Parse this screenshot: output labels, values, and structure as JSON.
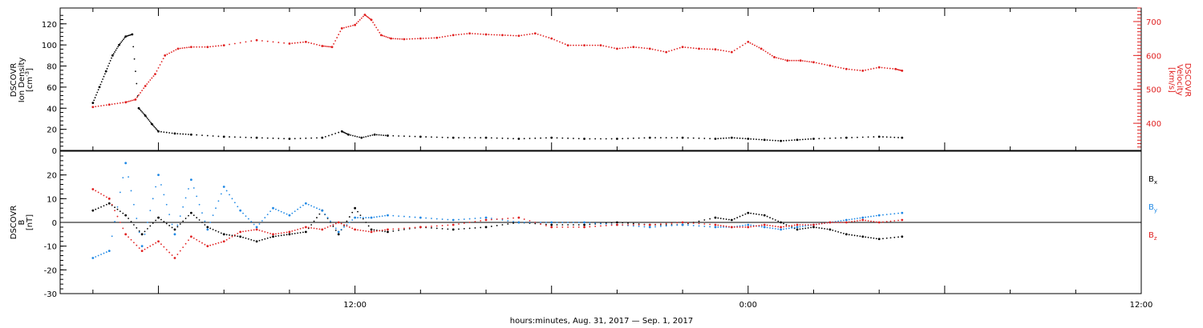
{
  "chart_data": [
    {
      "type": "scatter",
      "title": "",
      "xlabel": "",
      "ylabel_left": [
        "DSCOVR",
        "Ion Density",
        "[cm",
        "-3",
        "]"
      ],
      "ylabel_right": [
        "DSCOVR",
        "Velocity",
        "[km/s]"
      ],
      "ylim_left": [
        0,
        135
      ],
      "ylim_right": [
        320,
        740
      ],
      "left_ticks": [
        "0",
        "20",
        "40",
        "60",
        "80",
        "100",
        "120"
      ],
      "right_ticks": [
        "400",
        "500",
        "600",
        "700"
      ],
      "colors": {
        "density": "#000000",
        "velocity": "#e02020"
      },
      "series": [
        {
          "name": "",
          "axis": "left",
          "x": [
            4.0,
            4.2,
            4.4,
            4.6,
            4.8,
            5.0,
            5.2,
            5.4,
            5.6,
            5.8,
            6.0,
            6.5,
            7,
            8,
            9,
            10,
            11,
            11.6,
            11.8,
            12.2,
            12.6,
            13,
            14,
            15,
            16,
            17,
            18,
            19,
            20,
            21,
            22,
            23,
            23.5,
            24,
            24.5,
            25,
            25.5,
            26,
            27,
            28,
            28.7
          ],
          "y": [
            45,
            60,
            75,
            90,
            100,
            108,
            110,
            40,
            33,
            25,
            18,
            16,
            15,
            13,
            12,
            11,
            12,
            18,
            15,
            12,
            15,
            14,
            13,
            12,
            12,
            11,
            12,
            11,
            11,
            12,
            12,
            11,
            12,
            11,
            10,
            9,
            10,
            11,
            12,
            13,
            12
          ]
        },
        {
          "name": "",
          "axis": "right",
          "x": [
            4.0,
            4.5,
            5.0,
            5.3,
            5.6,
            5.9,
            6.2,
            6.6,
            7,
            7.5,
            8,
            9,
            10,
            10.5,
            11,
            11.3,
            11.6,
            12,
            12.3,
            12.5,
            12.8,
            13.1,
            13.5,
            14,
            14.5,
            15,
            15.5,
            16,
            16.5,
            17,
            17.5,
            18,
            18.5,
            19,
            19.5,
            20,
            20.5,
            21,
            21.5,
            22,
            22.5,
            23,
            23.5,
            24,
            24.4,
            24.8,
            25.2,
            25.6,
            26,
            26.5,
            27,
            27.5,
            28,
            28.5,
            28.7
          ],
          "y": [
            448,
            455,
            462,
            470,
            510,
            545,
            600,
            620,
            625,
            625,
            630,
            645,
            635,
            640,
            628,
            625,
            680,
            690,
            720,
            705,
            660,
            650,
            648,
            650,
            652,
            660,
            665,
            662,
            660,
            658,
            665,
            650,
            630,
            630,
            630,
            620,
            625,
            620,
            610,
            625,
            620,
            618,
            610,
            640,
            620,
            595,
            585,
            585,
            580,
            570,
            560,
            555,
            565,
            560,
            555
          ]
        }
      ]
    },
    {
      "type": "scatter",
      "title": "",
      "ylabel": [
        "DSCOVR",
        "B",
        "[nT]"
      ],
      "ylim": [
        -30,
        30
      ],
      "left_ticks": [
        "-30",
        "-20",
        "-10",
        "0",
        "10",
        "20"
      ],
      "legend": [
        {
          "label": "B",
          "sub": "x",
          "color": "#000000"
        },
        {
          "label": "B",
          "sub": "y",
          "color": "#1e88e5"
        },
        {
          "label": "B",
          "sub": "z",
          "color": "#e02020"
        }
      ],
      "series": [
        {
          "name": "Bx",
          "x": [
            4.0,
            4.5,
            5.0,
            5.5,
            6.0,
            6.5,
            7.0,
            7.5,
            8,
            8.5,
            9,
            9.5,
            10,
            10.5,
            11,
            11.5,
            12,
            12.5,
            13,
            14,
            15,
            16,
            17,
            18,
            19,
            20,
            21,
            22,
            23,
            23.5,
            24,
            24.5,
            25,
            25.5,
            26,
            26.5,
            27,
            27.5,
            28,
            28.7
          ],
          "y": [
            5,
            8,
            3,
            -5,
            2,
            -3,
            4,
            -2,
            -5,
            -6,
            -8,
            -6,
            -5,
            -4,
            5,
            -5,
            6,
            -3,
            -4,
            -2,
            -3,
            -2,
            0,
            -1,
            -1,
            0,
            -1,
            -1,
            2,
            1,
            4,
            3,
            0,
            -3,
            -2,
            -3,
            -5,
            -6,
            -7,
            -6
          ]
        },
        {
          "name": "By",
          "x": [
            4.0,
            4.5,
            5.0,
            5.5,
            6.0,
            6.5,
            7.0,
            7.5,
            8,
            8.5,
            9,
            9.5,
            10,
            10.5,
            11,
            11.5,
            12,
            12.5,
            13,
            14,
            15,
            16,
            17,
            18,
            19,
            20,
            21,
            22,
            23,
            23.5,
            24,
            24.5,
            25,
            25.5,
            26,
            26.5,
            27,
            27.5,
            28,
            28.7
          ],
          "y": [
            -15,
            -12,
            25,
            -10,
            20,
            -5,
            18,
            -3,
            15,
            5,
            -2,
            6,
            3,
            8,
            5,
            -4,
            2,
            2,
            3,
            2,
            1,
            2,
            0,
            0,
            0,
            -1,
            -2,
            -1,
            -2,
            -2,
            -1,
            -2,
            -3,
            -2,
            -1,
            0,
            1,
            2,
            3,
            4
          ]
        },
        {
          "name": "Bz",
          "x": [
            4.0,
            4.5,
            5.0,
            5.5,
            6.0,
            6.5,
            7.0,
            7.5,
            8,
            8.5,
            9,
            9.5,
            10,
            10.5,
            11,
            11.5,
            12,
            12.5,
            13,
            14,
            15,
            16,
            17,
            18,
            19,
            20,
            21,
            22,
            23,
            23.5,
            24,
            24.5,
            25,
            25.5,
            26,
            26.5,
            27,
            27.5,
            28,
            28.7
          ],
          "y": [
            14,
            10,
            -5,
            -12,
            -8,
            -15,
            -6,
            -10,
            -8,
            -4,
            -3,
            -5,
            -4,
            -2,
            -3,
            0,
            -3,
            -4,
            -3,
            -2,
            -1,
            1,
            2,
            -2,
            -2,
            -1,
            -1,
            0,
            -1,
            -2,
            -2,
            -1,
            -2,
            -1,
            -1,
            0,
            0,
            1,
            0,
            1
          ]
        }
      ]
    }
  ],
  "xaxis": {
    "range_hours": [
      3,
      36
    ],
    "ticks": [
      {
        "label": "12:00",
        "h": 12
      },
      {
        "label": "0:00",
        "h": 24
      },
      {
        "label": "12:00",
        "h": 36
      }
    ],
    "title": "hours:minutes,  Aug. 31, 2017 — Sep.  1, 2017"
  }
}
